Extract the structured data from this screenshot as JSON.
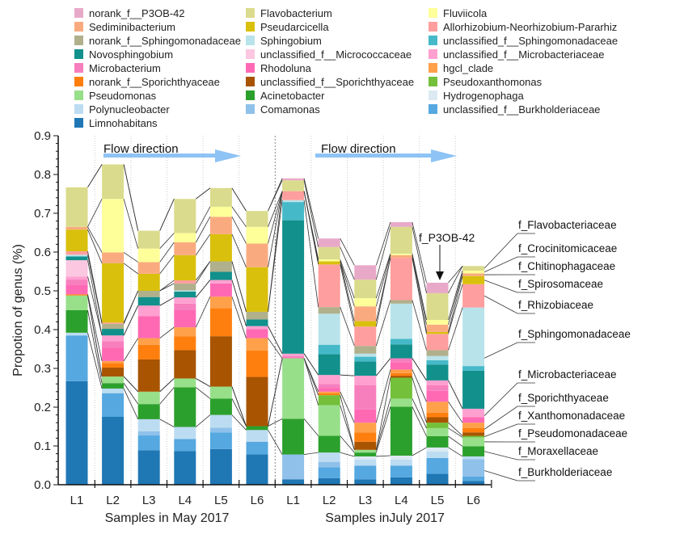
{
  "chart_data": {
    "type": "bar",
    "stacked": true,
    "ylabel": "Propotion of genus (%)",
    "ylim": [
      0,
      0.9
    ],
    "yticks": [
      "0.0",
      "0.1",
      "0.2",
      "0.3",
      "0.4",
      "0.5",
      "0.6",
      "0.7",
      "0.8",
      "0.9"
    ],
    "categories": [
      "L1",
      "L2",
      "L3",
      "L4",
      "L5",
      "L6",
      "L1",
      "L2",
      "L3",
      "L4",
      "L5",
      "L6"
    ],
    "groups": [
      {
        "label": "Samples in May 2017",
        "annotation": "Flow direction"
      },
      {
        "label": "Samples inJuly 2017",
        "annotation": "Flow direction"
      }
    ],
    "arrow_color": "#8ec3f5",
    "point_annotation": "f_P3OB-42",
    "legend_columns": [
      [
        "norank_f__P3OB-42",
        "Sediminibacterium",
        "norank_f__Sphingomonadaceae",
        "Novosphingobium",
        "Microbacterium",
        "norank_f__Sporichthyaceae",
        "Pseudomonas",
        "Polynucleobacter",
        "Limnohabitans"
      ],
      [
        "Flavobacterium",
        "Pseudarcicella",
        "Sphingobium",
        "unclassified_f__Micrococcaceae",
        "Rhodoluna",
        "unclassified_f__Sporichthyaceae",
        "Acinetobacter",
        "Comamonas"
      ],
      [
        "Fluviicola",
        "Allorhizobium-Neorhizobium-Pararhiz",
        "unclassified_f__Sphingomonadaceae",
        "unclassified_f__Microbacteriaceae",
        "hgcl_clade",
        "Pseudoxanthomonas",
        "Hydrogenophaga",
        "unclassified_f__Burkholderiaceae"
      ]
    ],
    "series": [
      {
        "name": "Limnohabitans",
        "color": "#1f77b4",
        "values": [
          0.267,
          0.175,
          0.089,
          0.087,
          0.092,
          0.078,
          0.014,
          0.017,
          0.014,
          0.019,
          0.028,
          0.01
        ]
      },
      {
        "name": "unclassified_f__Burkholderiaceae",
        "color": "#55a8e0",
        "values": [
          0.118,
          0.061,
          0.038,
          0.031,
          0.043,
          0.033,
          0,
          0.028,
          0.035,
          0.03,
          0.041,
          0.011
        ]
      },
      {
        "name": "Comamonas",
        "color": "#8fc1ea",
        "values": [
          0,
          0,
          0.011,
          0,
          0.012,
          0,
          0.064,
          0.014,
          0,
          0,
          0,
          0.045
        ]
      },
      {
        "name": "Polynucleobacter",
        "color": "#bcdcf2",
        "values": [
          0.007,
          0.012,
          0.031,
          0.031,
          0.033,
          0.03,
          0,
          0.024,
          0.016,
          0.016,
          0.017,
          0.007
        ]
      },
      {
        "name": "Hydrogenophaga",
        "color": "#dce9f2",
        "values": [
          0,
          0,
          0,
          0,
          0,
          0,
          0,
          0,
          0.008,
          0.01,
          0.01,
          0
        ]
      },
      {
        "name": "Acinetobacter",
        "color": "#2ca02c",
        "values": [
          0.058,
          0.014,
          0.039,
          0.102,
          0.042,
          0.01,
          0.092,
          0.043,
          0.01,
          0.126,
          0.029,
          0.026
        ]
      },
      {
        "name": "Pseudomonas",
        "color": "#98df8a",
        "values": [
          0.038,
          0.017,
          0.032,
          0.023,
          0.031,
          0,
          0.156,
          0.079,
          0.007,
          0.021,
          0.021,
          0.023
        ]
      },
      {
        "name": "Pseudoxanthomonas",
        "color": "#74c03a",
        "values": [
          0,
          0,
          0,
          0,
          0,
          0,
          0,
          0.026,
          0,
          0.054,
          0.014,
          0.004
        ]
      },
      {
        "name": "unclassified_f__Sporichthyaceae",
        "color": "#a85400",
        "values": [
          0,
          0.023,
          0.083,
          0.073,
          0.13,
          0.127,
          0,
          0,
          0.021,
          0.005,
          0.014,
          0.009
        ]
      },
      {
        "name": "norank_f__Sporichthyaceae",
        "color": "#ff7f0e",
        "values": [
          0.003,
          0.012,
          0.038,
          0.036,
          0.072,
          0.068,
          0,
          0.005,
          0.024,
          0.007,
          0.012,
          0.011
        ]
      },
      {
        "name": "hgcl_clade",
        "color": "#ffa04a",
        "values": [
          0,
          0.005,
          0.017,
          0.023,
          0.03,
          0.032,
          0,
          0.004,
          0.025,
          0.009,
          0.028,
          0.014
        ]
      },
      {
        "name": "Rhodoluna",
        "color": "#ff69b4",
        "values": [
          0.025,
          0.035,
          0.057,
          0.044,
          0.034,
          0.023,
          0,
          0.009,
          0.034,
          0.019,
          0.028,
          0.014
        ]
      },
      {
        "name": "Microbacterium",
        "color": "#f77fbe",
        "values": [
          0.013,
          0.016,
          0,
          0.017,
          0,
          0,
          0.006,
          0.011,
          0.063,
          0.01,
          0.015,
          0
        ]
      },
      {
        "name": "unclassified_f__Microbacteriaceae",
        "color": "#ffa0d0",
        "values": [
          0.008,
          0.015,
          0.027,
          0.016,
          0.009,
          0.008,
          0.006,
          0.023,
          0.024,
          0,
          0.012,
          0.022
        ]
      },
      {
        "name": "unclassified_f__Micrococcaceae",
        "color": "#fcc7e0",
        "values": [
          0.042,
          0,
          0,
          0,
          0,
          0,
          0,
          0,
          0,
          0,
          0,
          0
        ]
      },
      {
        "name": "Novosphingobium",
        "color": "#12908c",
        "values": [
          0.009,
          0.017,
          0.022,
          0.015,
          0.021,
          0.017,
          0.344,
          0.054,
          0.037,
          0.036,
          0.041,
          0.098
        ]
      },
      {
        "name": "unclassified_f__Sphingomonadaceae",
        "color": "#46b9c9",
        "values": [
          0.002,
          0,
          0,
          0,
          0,
          0,
          0.047,
          0.024,
          0.012,
          0.014,
          0.011,
          0.012
        ]
      },
      {
        "name": "Sphingobium",
        "color": "#b8e3ea",
        "values": [
          0.003,
          0,
          0,
          0.003,
          0,
          0,
          0.005,
          0.08,
          0.008,
          0.091,
          0.011,
          0.151
        ]
      },
      {
        "name": "norank_f__Sphingomonadaceae",
        "color": "#b0b08c",
        "values": [
          0,
          0.013,
          0.016,
          0.018,
          0.027,
          0.02,
          0,
          0.017,
          0.02,
          0.009,
          0.015,
          0
        ]
      },
      {
        "name": "Allorhizobium-Neorhizobium-Pararhiz",
        "color": "#ff9e9e",
        "values": [
          0.009,
          0.003,
          0,
          0.008,
          0,
          0,
          0.023,
          0.11,
          0.05,
          0.109,
          0.042,
          0.06
        ]
      },
      {
        "name": "Pseudarcicella",
        "color": "#d9c00c",
        "values": [
          0.056,
          0.153,
          0.044,
          0.065,
          0.07,
          0.115,
          0,
          0.008,
          0.014,
          0,
          0.005,
          0.021
        ]
      },
      {
        "name": "Sediminibacterium",
        "color": "#f9ab7f",
        "values": [
          0.007,
          0.028,
          0.03,
          0.033,
          0.045,
          0.061,
          0,
          0,
          0.038,
          0.007,
          0.019,
          0.007
        ]
      },
      {
        "name": "Fluviicola",
        "color": "#ffff9a",
        "values": [
          0,
          0.138,
          0.035,
          0.024,
          0.026,
          0.043,
          0,
          0.005,
          0.021,
          0.004,
          0.012,
          0.007
        ]
      },
      {
        "name": "Flavobacterium",
        "color": "#dbdb8d",
        "values": [
          0.102,
          0.089,
          0.046,
          0.088,
          0.048,
          0.041,
          0.028,
          0.032,
          0.048,
          0.069,
          0.069,
          0.012
        ]
      },
      {
        "name": "norank_f__P3OB-42",
        "color": "#e8a9c8",
        "values": [
          0,
          0,
          0,
          0,
          0,
          0,
          0.005,
          0.022,
          0.037,
          0.012,
          0.027,
          0
        ]
      }
    ],
    "families": [
      {
        "label": "f_Flavobacteriaceae",
        "members": [
          "Flavobacterium"
        ]
      },
      {
        "label": "f_Crocinitomicaceae",
        "members": [
          "Fluviicola"
        ]
      },
      {
        "label": "f_Chitinophagaceae",
        "members": [
          "Sediminibacterium"
        ]
      },
      {
        "label": "f_Spirosomaceae",
        "members": [
          "Pseudarcicella"
        ]
      },
      {
        "label": "f_Rhizobiaceae",
        "members": [
          "Allorhizobium-Neorhizobium-Pararhiz"
        ]
      },
      {
        "label": "f_Sphingomonadaceae",
        "members": [
          "Novosphingobium",
          "unclassified_f__Sphingomonadaceae",
          "Sphingobium",
          "norank_f__Sphingomonadaceae"
        ]
      },
      {
        "label": "f_Microbacteriaceae",
        "members": [
          "Rhodoluna",
          "Microbacterium",
          "unclassified_f__Microbacteriaceae"
        ]
      },
      {
        "label": "f_Sporichthyaceae",
        "members": [
          "unclassified_f__Sporichthyaceae",
          "norank_f__Sporichthyaceae",
          "hgcl_clade"
        ]
      },
      {
        "label": "f_Xanthomonadaceae",
        "members": [
          "Pseudoxanthomonas"
        ]
      },
      {
        "label": "f_Pseudomonadaceae",
        "members": [
          "Pseudomonas"
        ]
      },
      {
        "label": "f_Moraxellaceae",
        "members": [
          "Acinetobacter"
        ]
      },
      {
        "label": "f_Burkholderiaceae",
        "members": [
          "Limnohabitans",
          "unclassified_f__Burkholderiaceae",
          "Comamonas",
          "Polynucleobacter",
          "Hydrogenophaga"
        ]
      }
    ]
  }
}
